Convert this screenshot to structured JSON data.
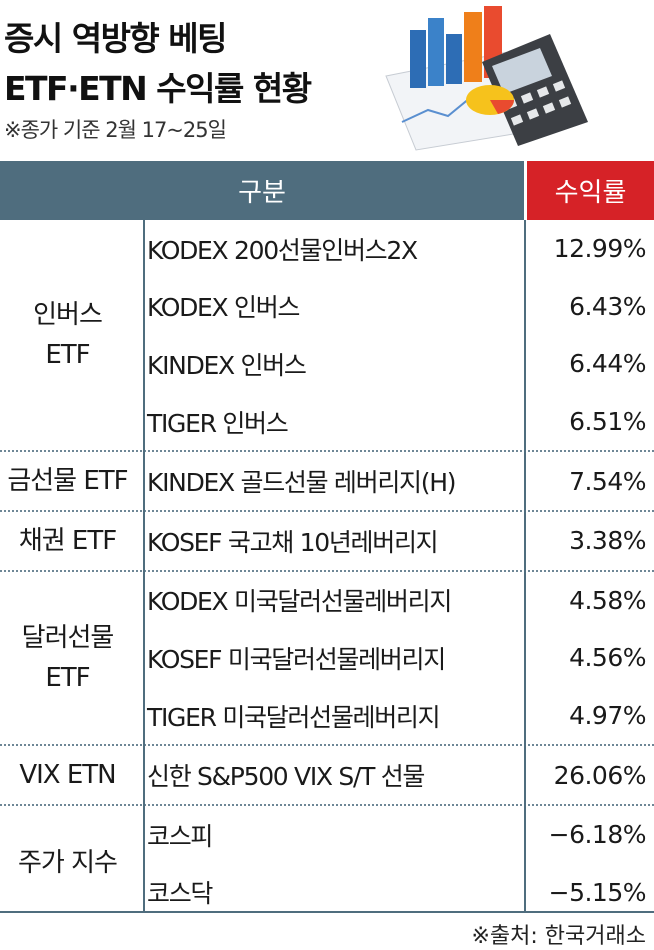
{
  "title_line1": "증시 역방향 베팅",
  "title_line2": "ETF·ETN 수익률 현황",
  "note": "※종가 기준 2월 17~25일",
  "source": "※출처: 한국거래소",
  "colors": {
    "header_bg": "#4f6d7e",
    "accent_red": "#d62227"
  },
  "chart_data": {
    "type": "table",
    "columns": [
      "구분",
      "수익률"
    ],
    "groups": [
      {
        "label": "인버스\nETF",
        "rows": [
          {
            "name": "KODEX 200선물인버스2X",
            "value": "12.99%"
          },
          {
            "name": "KODEX 인버스",
            "value": "6.43%"
          },
          {
            "name": "KINDEX 인버스",
            "value": "6.44%"
          },
          {
            "name": "TIGER 인버스",
            "value": "6.51%"
          }
        ]
      },
      {
        "label": "금선물 ETF",
        "rows": [
          {
            "name": "KINDEX 골드선물 레버리지(H)",
            "value": "7.54%"
          }
        ]
      },
      {
        "label": "채권 ETF",
        "rows": [
          {
            "name": "KOSEF 국고채 10년레버리지",
            "value": "3.38%"
          }
        ]
      },
      {
        "label": "달러선물\nETF",
        "rows": [
          {
            "name": "KODEX 미국달러선물레버리지",
            "value": "4.58%"
          },
          {
            "name": "KOSEF 미국달러선물레버리지",
            "value": "4.56%"
          },
          {
            "name": "TIGER 미국달러선물레버리지",
            "value": "4.97%"
          }
        ]
      },
      {
        "label": "VIX ETN",
        "rows": [
          {
            "name": "신한 S&P500 VIX S/T 선물",
            "value": "26.06%"
          }
        ]
      },
      {
        "label": "주가 지수",
        "rows": [
          {
            "name": "코스피",
            "value": "−6.18%"
          },
          {
            "name": "코스닥",
            "value": "−5.15%"
          }
        ]
      }
    ]
  }
}
